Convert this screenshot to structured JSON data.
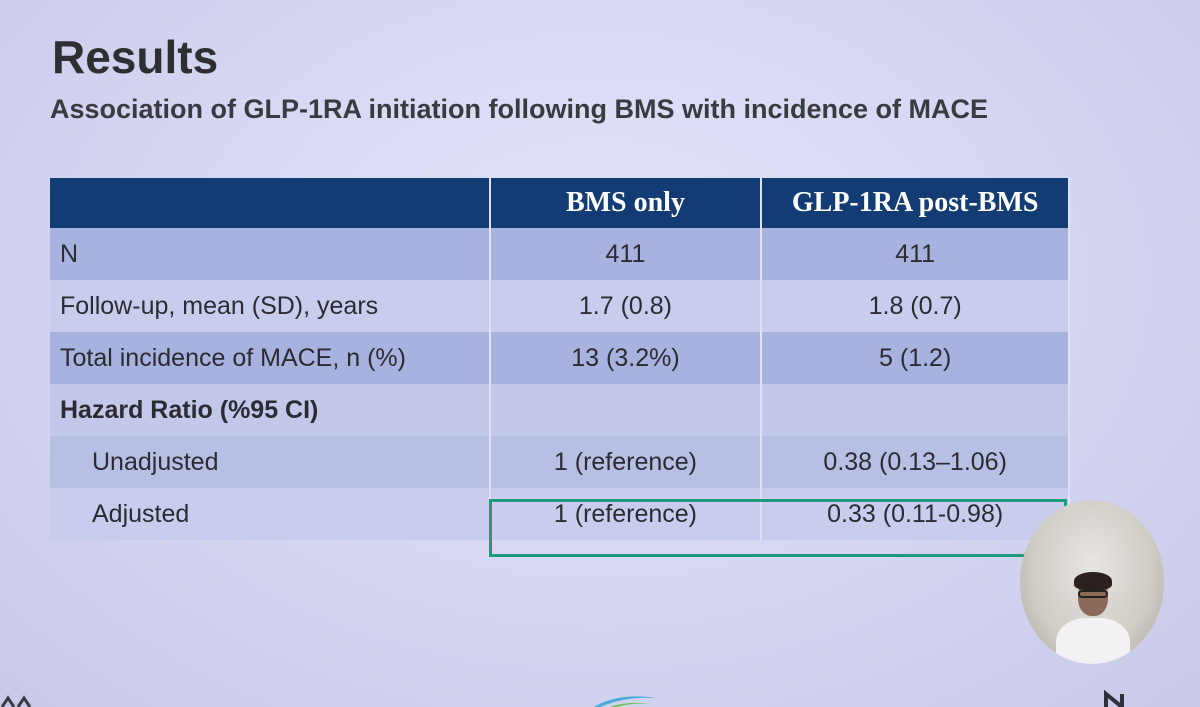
{
  "slide": {
    "title": "Results",
    "subtitle": "Association of GLP-1RA initiation following BMS with incidence of MACE"
  },
  "table": {
    "headers": [
      "",
      "BMS only",
      "GLP-1RA post-BMS"
    ],
    "rows": [
      {
        "label": "N",
        "bms_only": "411",
        "glp1ra_post_bms": "411"
      },
      {
        "label": "Follow-up, mean (SD), years",
        "bms_only": "1.7 (0.8)",
        "glp1ra_post_bms": "1.8 (0.7)"
      },
      {
        "label": "Total incidence of MACE, n (%)",
        "bms_only": "13 (3.2%)",
        "glp1ra_post_bms": "5 (1.2)"
      },
      {
        "label": "Hazard Ratio (%95 CI)",
        "bms_only": "",
        "glp1ra_post_bms": ""
      },
      {
        "label": "Unadjusted",
        "bms_only": "1 (reference)",
        "glp1ra_post_bms": "0.38 (0.13–1.06)"
      },
      {
        "label": "Adjusted",
        "bms_only": "1 (reference)",
        "glp1ra_post_bms": "0.33 (0.11-0.98)"
      }
    ]
  },
  "colors": {
    "header_bg": "#123c73",
    "highlight_border": "#1f9a7a",
    "slide_bg": "#d6d7f1"
  },
  "decorations": {
    "presenter": "presenter-video-thumbnail",
    "logo": "swoosh-logo"
  }
}
